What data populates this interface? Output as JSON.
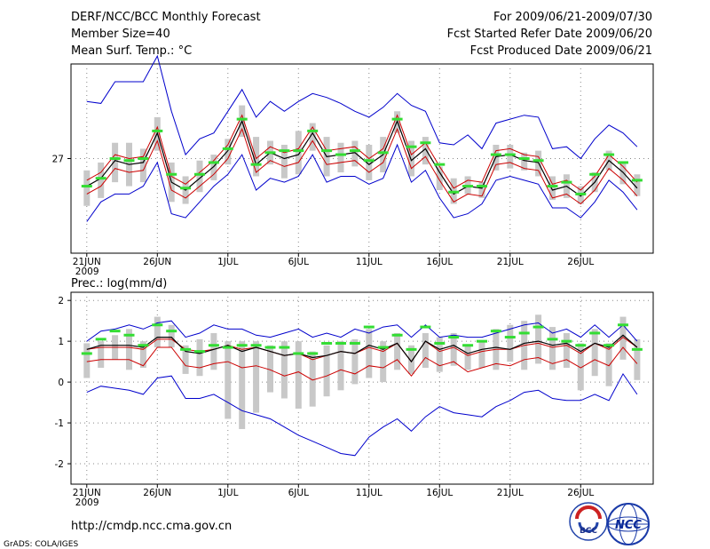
{
  "header": {
    "title": "DERF/NCC/BCC Monthly Forecast",
    "member_size": "Member Size=40",
    "variable_temp": "Mean Surf. Temp.: °C",
    "forecast_period": "For 2009/06/21-2009/07/30",
    "started_date": "Fcst Started Refer Date 2009/06/20",
    "produced_date": "Fcst Produced Date 2009/06/21"
  },
  "footer": {
    "url": "http://cmdp.ncc.cma.gov.cn",
    "grads": "GrADS: COLA/IGES",
    "logo_bcc": "BCC",
    "logo_ncc": "NCC"
  },
  "colors": {
    "envelope": "#0000cc",
    "inner": "#cc0000",
    "mean": "#000000",
    "bar": "#c8c8c8",
    "marker": "#33dd33"
  },
  "chart_data": [
    {
      "type": "line",
      "title": "Mean Surf. Temp.: °C",
      "x_tick_labels": [
        "21JUN",
        "26JUN",
        "1JUL",
        "6JUL",
        "11JUL",
        "16JUL",
        "21JUL",
        "26JUL"
      ],
      "x_year_label": "2009",
      "y_tick_labels": [
        "27"
      ],
      "y_ticks": [
        27
      ],
      "ylim": [
        24.6,
        29.4
      ],
      "days": 40,
      "series": [
        {
          "name": "mean",
          "values": [
            26.3,
            26.5,
            26.95,
            26.85,
            26.9,
            27.65,
            26.4,
            26.2,
            26.5,
            26.8,
            27.2,
            27.95,
            26.85,
            27.15,
            27,
            27.1,
            27.65,
            27.05,
            27.1,
            27.15,
            26.85,
            27.1,
            27.95,
            26.95,
            27.25,
            26.65,
            26.1,
            26.3,
            26.25,
            27.05,
            27.1,
            26.95,
            26.9,
            26.2,
            26.3,
            26.05,
            26.4,
            26.95,
            26.65,
            26.25
          ]
        },
        {
          "name": "upper",
          "values": [
            28.45,
            28.4,
            28.95,
            28.95,
            28.95,
            29.6,
            28.2,
            27.1,
            27.5,
            27.65,
            28.2,
            28.75,
            28.05,
            28.45,
            28.2,
            28.45,
            28.65,
            28.55,
            28.4,
            28.2,
            28.05,
            28.3,
            28.65,
            28.35,
            28.2,
            27.4,
            27.35,
            27.6,
            27.25,
            27.9,
            28,
            28.1,
            28.05,
            27.25,
            27.3,
            27,
            27.5,
            27.85,
            27.65,
            27.3
          ]
        },
        {
          "name": "lower",
          "values": [
            25.4,
            25.9,
            26.1,
            26.1,
            26.3,
            26.9,
            25.6,
            25.5,
            25.9,
            26.3,
            26.6,
            27.1,
            26.2,
            26.5,
            26.4,
            26.55,
            27.1,
            26.4,
            26.55,
            26.55,
            26.35,
            26.5,
            27.35,
            26.4,
            26.7,
            26,
            25.5,
            25.6,
            25.85,
            26.45,
            26.55,
            26.45,
            26.35,
            25.75,
            25.75,
            25.5,
            25.9,
            26.45,
            26.15,
            25.7
          ]
        },
        {
          "name": "upper_inner",
          "values": [
            26.45,
            26.65,
            27.1,
            27,
            27.05,
            27.8,
            26.55,
            26.35,
            26.65,
            26.95,
            27.35,
            28.1,
            27,
            27.3,
            27.15,
            27.25,
            27.8,
            27.2,
            27.25,
            27.3,
            27,
            27.25,
            28.1,
            27.1,
            27.4,
            26.8,
            26.25,
            26.45,
            26.4,
            27.2,
            27.25,
            27.1,
            27.05,
            26.35,
            26.45,
            26.2,
            26.55,
            27.1,
            26.8,
            26.4
          ]
        },
        {
          "name": "lower_inner",
          "values": [
            26.1,
            26.3,
            26.75,
            26.65,
            26.7,
            27.45,
            26.2,
            26,
            26.3,
            26.6,
            27,
            27.75,
            26.65,
            26.95,
            26.8,
            26.9,
            27.45,
            26.85,
            26.9,
            26.95,
            26.65,
            26.9,
            27.75,
            26.75,
            27.05,
            26.45,
            25.9,
            26.1,
            26.05,
            26.85,
            26.9,
            26.75,
            26.7,
            26,
            26.1,
            25.85,
            26.2,
            26.75,
            26.45,
            26.05
          ]
        },
        {
          "name": "bar_top",
          "values": [
            26.7,
            26.9,
            27.4,
            27.4,
            27.25,
            28.05,
            26.9,
            26.55,
            26.95,
            27.1,
            27.5,
            28.35,
            27.55,
            27.45,
            27.35,
            27.7,
            27.9,
            27.55,
            27.4,
            27.45,
            27.35,
            27.55,
            28.2,
            27.45,
            27.55,
            26.8,
            26.5,
            26.55,
            26.4,
            27.35,
            27.35,
            27.15,
            27.2,
            26.55,
            26.6,
            26.3,
            26.65,
            27.2,
            26.9,
            26.6
          ]
        },
        {
          "name": "bar_bottom",
          "values": [
            25.8,
            26,
            26.4,
            26.3,
            26.4,
            27.2,
            25.9,
            25.85,
            26.15,
            26.45,
            26.85,
            27.55,
            26.55,
            26.85,
            26.5,
            26.6,
            27.2,
            26.55,
            26.65,
            26.8,
            26.45,
            26.65,
            27.65,
            26.55,
            26.85,
            26.2,
            25.85,
            26.1,
            26,
            26.7,
            26.75,
            26.7,
            26.55,
            25.95,
            26,
            25.85,
            26.15,
            26.7,
            26.35,
            26.05
          ]
        },
        {
          "name": "markers",
          "values": [
            26.3,
            26.5,
            27,
            26.95,
            27,
            27.7,
            26.6,
            26.25,
            26.6,
            26.9,
            27.25,
            28,
            26.85,
            27.15,
            27.2,
            27.2,
            27.7,
            27.2,
            27.1,
            27.2,
            26.95,
            27.15,
            28,
            27.3,
            27.4,
            26.85,
            26.15,
            26.3,
            26.3,
            27.1,
            27.1,
            27,
            26.95,
            26.3,
            26.4,
            26.1,
            26.6,
            27.1,
            26.9,
            26.45
          ]
        }
      ]
    },
    {
      "type": "line",
      "title": "Prec.: log(mm/d)",
      "x_tick_labels": [
        "21JUN",
        "26JUN",
        "1JUL",
        "6JUL",
        "11JUL",
        "16JUL",
        "21JUL",
        "26JUL"
      ],
      "x_year_label": "2009",
      "y_tick_labels": [
        "2",
        "1",
        "0",
        "-1",
        "-2"
      ],
      "y_ticks": [
        2,
        1,
        0,
        -1,
        -2
      ],
      "ylim": [
        -2.5,
        2.2
      ],
      "days": 40,
      "series": [
        {
          "name": "mean",
          "values": [
            0.8,
            0.9,
            0.9,
            0.9,
            0.85,
            1.1,
            1.1,
            0.75,
            0.7,
            0.8,
            0.9,
            0.75,
            0.85,
            0.75,
            0.65,
            0.7,
            0.6,
            0.65,
            0.75,
            0.7,
            0.9,
            0.8,
            0.95,
            0.5,
            1,
            0.8,
            0.9,
            0.7,
            0.8,
            0.85,
            0.8,
            0.95,
            1,
            0.9,
            0.95,
            0.75,
            0.95,
            0.85,
            1.15,
            0.85
          ]
        },
        {
          "name": "upper",
          "values": [
            1,
            1.25,
            1.3,
            1.4,
            1.3,
            1.45,
            1.5,
            1.1,
            1.2,
            1.4,
            1.3,
            1.3,
            1.15,
            1.1,
            1.2,
            1.3,
            1.1,
            1.2,
            1.1,
            1.3,
            1.2,
            1.35,
            1.4,
            1.1,
            1.4,
            1.1,
            1.15,
            1.1,
            1.1,
            1.2,
            1.3,
            1.4,
            1.45,
            1.2,
            1.3,
            1.1,
            1.4,
            1.1,
            1.4,
            1
          ]
        },
        {
          "name": "lower",
          "values": [
            -0.25,
            -0.1,
            -0.15,
            -0.2,
            -0.3,
            0.1,
            0.15,
            -0.4,
            -0.4,
            -0.3,
            -0.5,
            -0.7,
            -0.8,
            -0.9,
            -1.1,
            -1.3,
            -1.45,
            -1.6,
            -1.75,
            -1.8,
            -1.35,
            -1.1,
            -0.9,
            -1.2,
            -0.85,
            -0.6,
            -0.75,
            -0.8,
            -0.85,
            -0.6,
            -0.45,
            -0.25,
            -0.2,
            -0.4,
            -0.45,
            -0.45,
            -0.3,
            -0.45,
            0.2,
            -0.3
          ]
        },
        {
          "name": "upper_inner",
          "values": [
            0.8,
            0.85,
            0.85,
            0.85,
            0.8,
            1.05,
            1.05,
            0.8,
            0.75,
            0.8,
            0.9,
            0.8,
            0.85,
            0.75,
            0.65,
            0.7,
            0.55,
            0.65,
            0.75,
            0.7,
            0.85,
            0.75,
            0.95,
            0.5,
            1,
            0.75,
            0.85,
            0.65,
            0.75,
            0.8,
            0.8,
            0.9,
            0.95,
            0.85,
            0.9,
            0.7,
            0.95,
            0.8,
            1.1,
            0.85
          ]
        },
        {
          "name": "lower_inner",
          "values": [
            0.5,
            0.55,
            0.55,
            0.55,
            0.4,
            0.85,
            0.85,
            0.4,
            0.35,
            0.45,
            0.5,
            0.35,
            0.4,
            0.3,
            0.15,
            0.25,
            0.05,
            0.15,
            0.3,
            0.2,
            0.4,
            0.35,
            0.55,
            0.15,
            0.6,
            0.4,
            0.5,
            0.25,
            0.35,
            0.45,
            0.4,
            0.55,
            0.6,
            0.45,
            0.55,
            0.35,
            0.55,
            0.4,
            0.85,
            0.45
          ]
        },
        {
          "name": "bar_top",
          "values": [
            0.95,
            1,
            1.15,
            1.3,
            1,
            1.6,
            1.4,
            0.9,
            1.05,
            1.2,
            1,
            1,
            1,
            0.9,
            1,
            1,
            0.75,
            0.9,
            1,
            1.05,
            1.3,
            1,
            1.2,
            0.9,
            1.2,
            1.1,
            1.2,
            0.9,
            1,
            1.3,
            1.4,
            1.5,
            1.65,
            1.35,
            1.2,
            0.95,
            1.3,
            0.95,
            1.6,
            1.05
          ]
        },
        {
          "name": "bar_bottom",
          "values": [
            0.1,
            0.35,
            0.55,
            0.3,
            0.35,
            0.85,
            0.85,
            0.2,
            0.15,
            0.3,
            -0.9,
            -1.15,
            -0.75,
            -0.25,
            -0.4,
            -0.65,
            -0.6,
            -0.35,
            -0.2,
            -0.05,
            0.1,
            0,
            0.3,
            0.2,
            0.35,
            0.25,
            0.4,
            0.3,
            0.35,
            0.3,
            0.5,
            0.3,
            0.45,
            0.3,
            0.35,
            -0.2,
            0.15,
            -0.1,
            0.55,
            0.05
          ]
        },
        {
          "name": "markers",
          "values": [
            0.7,
            1.05,
            1.25,
            1.15,
            0.9,
            1.4,
            1.25,
            0.8,
            0.75,
            0.9,
            0.85,
            0.9,
            0.9,
            0.85,
            0.85,
            0.7,
            0.7,
            0.95,
            0.95,
            0.95,
            1.35,
            0.85,
            1.15,
            0.8,
            1.35,
            0.95,
            1.1,
            0.9,
            1,
            1.25,
            1.1,
            1.2,
            1.35,
            1.05,
            1,
            0.9,
            1.2,
            0.9,
            1.4,
            0.8
          ]
        }
      ]
    }
  ]
}
